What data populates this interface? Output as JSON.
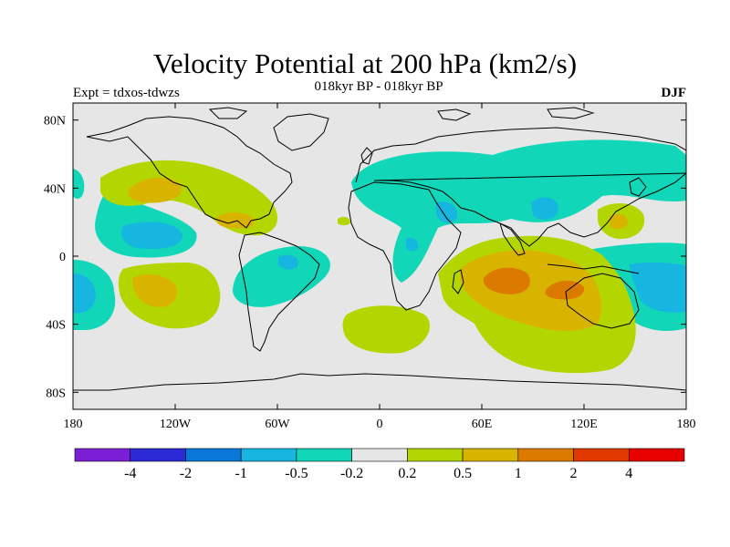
{
  "title": "Velocity Potential at 200 hPa (km2/s)",
  "subtitle": "018kyr BP - 018kyr BP",
  "left_label": "Expt = tdxos-tdwzs",
  "right_label": "DJF",
  "map": {
    "lon_range": [
      -180,
      180
    ],
    "lat_range": [
      -90,
      90
    ],
    "x_ticks": [
      "180",
      "120W",
      "60W",
      "0",
      "60E",
      "120E",
      "180"
    ],
    "y_ticks": [
      "80N",
      "40N",
      "0",
      "40S",
      "80S"
    ],
    "background_color": "#e6e6e6"
  },
  "colorbar": {
    "labels": [
      "-4",
      "-2",
      "-1",
      "-0.5",
      "-0.2",
      "0.2",
      "0.5",
      "1",
      "2",
      "4"
    ],
    "colors": [
      "#7a1fd6",
      "#2a2ad6",
      "#0a78d8",
      "#16b6e0",
      "#12d6b8",
      "#e6e6e6",
      "#b4d600",
      "#d8b400",
      "#dc7a00",
      "#e03a00",
      "#e60000"
    ]
  },
  "contour_colors": {
    "neg_weak": "#12d6b8",
    "neg_mid": "#16b6e0",
    "pos_weak": "#b4d600",
    "pos_mid": "#d8b400",
    "pos_strong": "#dc7a00"
  }
}
